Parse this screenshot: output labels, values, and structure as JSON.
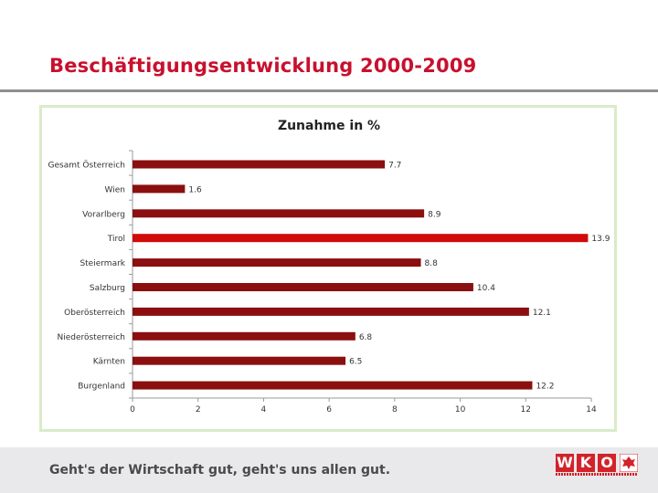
{
  "slide": {
    "title": "Beschäftigungsentwicklung 2000-2009",
    "footer_slogan": "Geht's der Wirtschaft gut, geht's uns allen gut.",
    "logo_letters": [
      "W",
      "K",
      "O"
    ]
  },
  "colors": {
    "bar": "#8b0f0f",
    "bar_highlight": "#d10a0a",
    "title": "#c8102e",
    "frame_border": "#d9ebc8",
    "footer_band": "#e9e9eb",
    "logo_red": "#d2232a"
  },
  "chart_data": {
    "type": "bar",
    "orientation": "horizontal",
    "title": "Zunahme in %",
    "categories": [
      "Gesamt Österreich",
      "Wien",
      "Vorarlberg",
      "Tirol",
      "Steiermark",
      "Salzburg",
      "Oberösterreich",
      "Niederösterreich",
      "Kärnten",
      "Burgenland"
    ],
    "values": [
      7.7,
      1.6,
      8.9,
      13.9,
      8.8,
      10.4,
      12.1,
      6.8,
      6.5,
      12.2
    ],
    "value_labels": [
      "7.7",
      "1.6",
      "8.9",
      "13.9",
      "8.8",
      "10.4",
      "12.1",
      "6.8",
      "6.5",
      "12.2"
    ],
    "highlight": "Tirol",
    "xlim": [
      0,
      14
    ],
    "xticks": [
      0,
      2,
      4,
      6,
      8,
      10,
      12,
      14
    ],
    "grid": false,
    "legend": false
  }
}
